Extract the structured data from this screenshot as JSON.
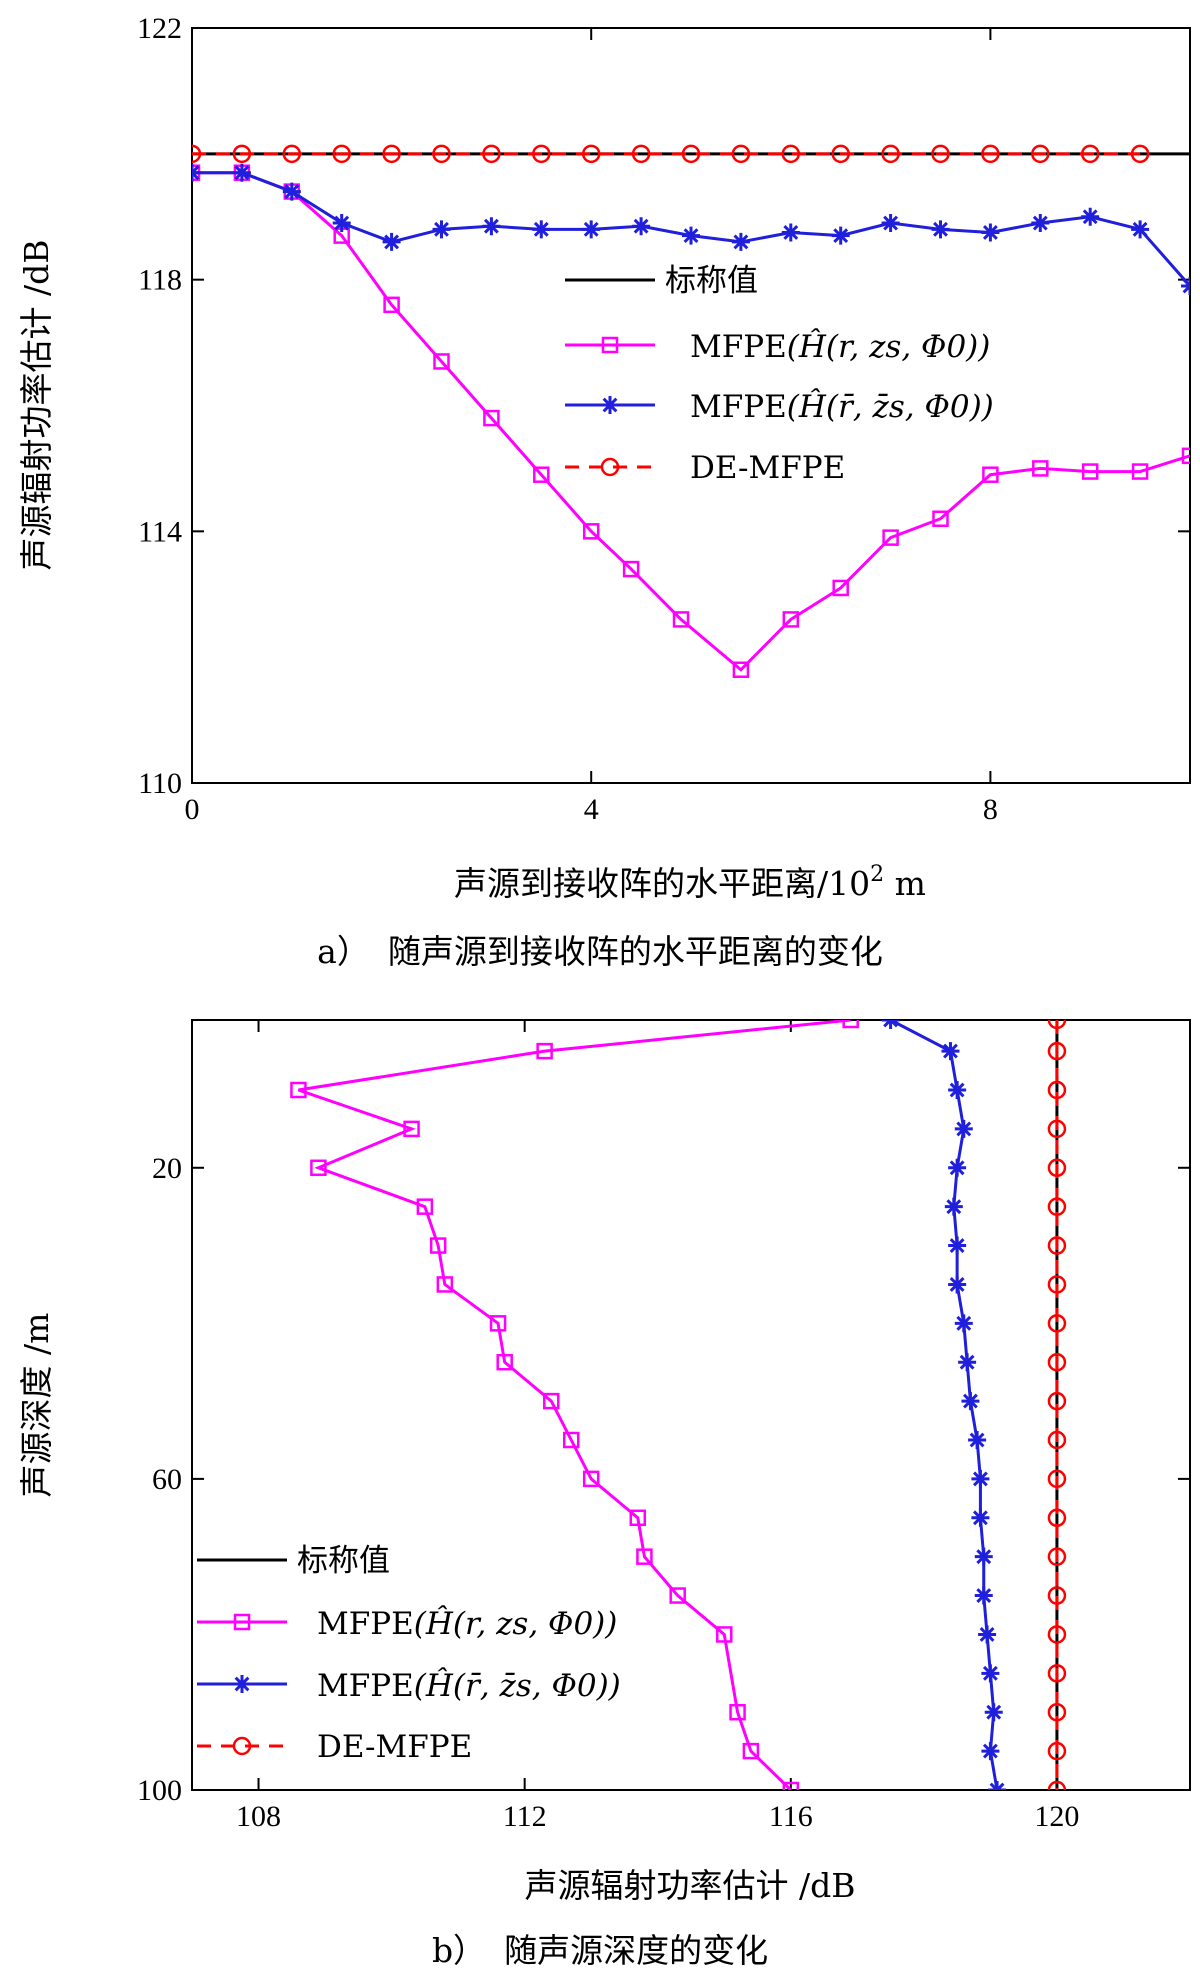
{
  "chart_data": [
    {
      "type": "line",
      "panel_label": "a）",
      "caption": "随声源到接收阵的水平距离的变化",
      "xlabel": "声源到接收阵的水平距离",
      "xunit": "/10",
      "xunit_exp": "2",
      "xunit_tail": " m",
      "ylabel": "声源辐射功率估计 /dB",
      "xlim": [
        0,
        10
      ],
      "ylim": [
        110,
        122
      ],
      "xticks": [
        "0",
        "4",
        "8"
      ],
      "yticks": [
        "110",
        "114",
        "118",
        "122"
      ],
      "legend_position": "center-right",
      "series": [
        {
          "name": "标称值",
          "color": "#000000",
          "style": "solid",
          "marker": "none",
          "x": [
            0,
            10
          ],
          "y": [
            120,
            120
          ]
        },
        {
          "name_text": "MFPE",
          "name_math": "(Ĥ(r, zs, Φ0))",
          "color": "#ff00ff",
          "style": "solid",
          "marker": "square",
          "x": [
            0,
            0.5,
            1,
            1.5,
            2,
            2.5,
            3,
            3.5,
            4,
            4.4,
            4.9,
            5.5,
            6,
            6.5,
            7,
            7.5,
            8,
            8.5,
            9,
            9.5,
            10
          ],
          "y": [
            119.7,
            119.7,
            119.4,
            118.7,
            117.6,
            116.7,
            115.8,
            114.9,
            114.0,
            113.4,
            112.6,
            111.8,
            112.6,
            113.1,
            113.9,
            114.2,
            114.9,
            115.0,
            114.95,
            114.95,
            115.2
          ]
        },
        {
          "name_text": "MFPE",
          "name_math": "(Ĥ(r̄, z̄s, Φ0))",
          "color": "#1f1fdc",
          "style": "solid",
          "marker": "star",
          "x": [
            0,
            0.5,
            1,
            1.5,
            2,
            2.5,
            3,
            3.5,
            4,
            4.5,
            5,
            5.5,
            6,
            6.5,
            7,
            7.5,
            8,
            8.5,
            9,
            9.5,
            10
          ],
          "y": [
            119.7,
            119.7,
            119.4,
            118.9,
            118.6,
            118.8,
            118.85,
            118.8,
            118.8,
            118.85,
            118.7,
            118.6,
            118.75,
            118.7,
            118.9,
            118.8,
            118.75,
            118.9,
            119.0,
            118.8,
            117.9
          ]
        },
        {
          "name": "DE-MFPE",
          "color": "#ff0000",
          "style": "dashed",
          "marker": "circle",
          "x": [
            0,
            0.5,
            1,
            1.5,
            2,
            2.5,
            3,
            3.5,
            4,
            4.5,
            5,
            5.5,
            6,
            6.5,
            7,
            7.5,
            8,
            8.5,
            9,
            9.5
          ],
          "y": [
            120,
            120,
            120,
            120,
            120,
            120,
            120,
            120,
            120,
            120,
            120,
            120,
            120,
            120,
            120,
            120,
            120,
            120,
            120,
            120
          ]
        }
      ]
    },
    {
      "type": "line",
      "panel_label": "b）",
      "caption": "随声源深度的变化",
      "xlabel": "声源辐射功率估计 /dB",
      "ylabel": "声源深度 /m",
      "xlim": [
        107,
        122
      ],
      "ylim": [
        100,
        1
      ],
      "y_inverted": true,
      "xticks": [
        "108",
        "112",
        "116",
        "120"
      ],
      "yticks": [
        "20",
        "60",
        "100"
      ],
      "legend_position": "bottom-left",
      "series": [
        {
          "name": "标称值",
          "color": "#000000",
          "style": "solid",
          "marker": "none",
          "x": [
            120,
            120
          ],
          "y": [
            1,
            100
          ]
        },
        {
          "name_text": "MFPE",
          "name_math": "(Ĥ(r, zs, Φ0))",
          "color": "#ff00ff",
          "style": "solid",
          "marker": "square",
          "x": [
            116.9,
            112.3,
            108.6,
            110.3,
            108.9,
            110.5,
            110.7,
            110.8,
            111.6,
            111.7,
            112.4,
            112.7,
            113.0,
            113.7,
            113.8,
            114.3,
            115.0,
            115.2,
            115.4,
            116.0
          ],
          "y": [
            1,
            5,
            10,
            15,
            20,
            25,
            30,
            35,
            40,
            45,
            50,
            55,
            60,
            65,
            70,
            75,
            80,
            90,
            95,
            100
          ]
        },
        {
          "name_text": "MFPE",
          "name_math": "(Ĥ(r̄, z̄s, Φ0))",
          "color": "#1f1fdc",
          "style": "solid",
          "marker": "star",
          "x": [
            117.5,
            118.4,
            118.5,
            118.6,
            118.5,
            118.45,
            118.5,
            118.5,
            118.6,
            118.65,
            118.7,
            118.8,
            118.85,
            118.85,
            118.9,
            118.9,
            118.95,
            119.0,
            119.05,
            119.0,
            119.1
          ],
          "y": [
            1,
            5,
            10,
            15,
            20,
            25,
            30,
            35,
            40,
            45,
            50,
            55,
            60,
            65,
            70,
            75,
            80,
            85,
            90,
            95,
            100
          ]
        },
        {
          "name": "DE-MFPE",
          "color": "#ff0000",
          "style": "dashed",
          "marker": "circle",
          "x": [
            120,
            120,
            120,
            120,
            120,
            120,
            120,
            120,
            120,
            120,
            120,
            120,
            120,
            120,
            120,
            120,
            120,
            120,
            120,
            120,
            120
          ],
          "y": [
            1,
            5,
            10,
            15,
            20,
            25,
            30,
            35,
            40,
            45,
            50,
            55,
            60,
            65,
            70,
            75,
            80,
            85,
            90,
            95,
            100
          ]
        }
      ]
    }
  ]
}
